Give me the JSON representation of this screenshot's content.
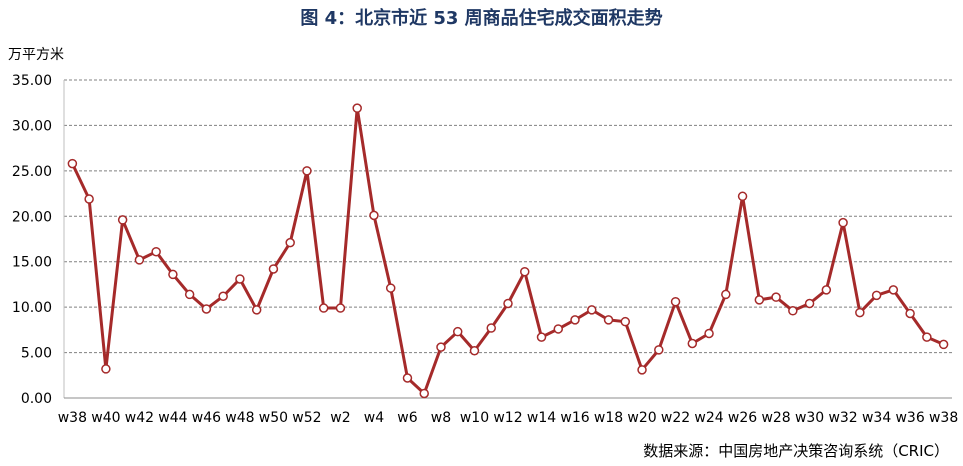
{
  "chart_data": {
    "type": "line",
    "title": "图 4：北京市近 53 周商品住宅成交面积走势",
    "ylabel": "万平方米",
    "xlabel": "",
    "ylim": [
      0,
      35
    ],
    "yticks": [
      "0.00",
      "5.00",
      "10.00",
      "15.00",
      "20.00",
      "25.00",
      "30.00",
      "35.00"
    ],
    "grid": true,
    "line_color": "#a52a2a",
    "marker_fill": "#ffffff",
    "categories": [
      "w38",
      "w39",
      "w40",
      "w41",
      "w42",
      "w43",
      "w44",
      "w45",
      "w46",
      "w47",
      "w48",
      "w49",
      "w50",
      "w51",
      "w52",
      "w1",
      "w2",
      "w3",
      "w4",
      "w5",
      "w6",
      "w7",
      "w8",
      "w9",
      "w10",
      "w11",
      "w12",
      "w13",
      "w14",
      "w15",
      "w16",
      "w17",
      "w18",
      "w19",
      "w20",
      "w21",
      "w22",
      "w23",
      "w24",
      "w25",
      "w26",
      "w27",
      "w28",
      "w29",
      "w30",
      "w31",
      "w32",
      "w33",
      "w34",
      "w35",
      "w36",
      "w37",
      "w38"
    ],
    "x_tick_labels": [
      "w38",
      "w40",
      "w42",
      "w44",
      "w46",
      "w48",
      "w50",
      "w52",
      "w2",
      "w4",
      "w6",
      "w8",
      "w10",
      "w12",
      "w14",
      "w16",
      "w18",
      "w20",
      "w22",
      "w24",
      "w26",
      "w28",
      "w30",
      "w32",
      "w34",
      "w36",
      "w38"
    ],
    "values": [
      25.8,
      21.9,
      3.2,
      19.6,
      15.2,
      16.1,
      13.6,
      11.4,
      9.8,
      11.2,
      13.1,
      9.7,
      14.2,
      17.1,
      25.0,
      9.9,
      9.9,
      31.9,
      20.1,
      12.1,
      2.2,
      0.5,
      5.6,
      7.3,
      5.2,
      7.7,
      10.4,
      13.9,
      6.7,
      7.6,
      8.6,
      9.7,
      8.6,
      8.4,
      3.1,
      5.3,
      10.6,
      6.0,
      7.1,
      11.4,
      22.2,
      10.8,
      11.1,
      9.6,
      10.4,
      11.9,
      19.3,
      9.4,
      11.3,
      11.9,
      9.3,
      6.7,
      5.9
    ]
  },
  "source": "数据来源：中国房地产决策咨询系统（CRIC）"
}
